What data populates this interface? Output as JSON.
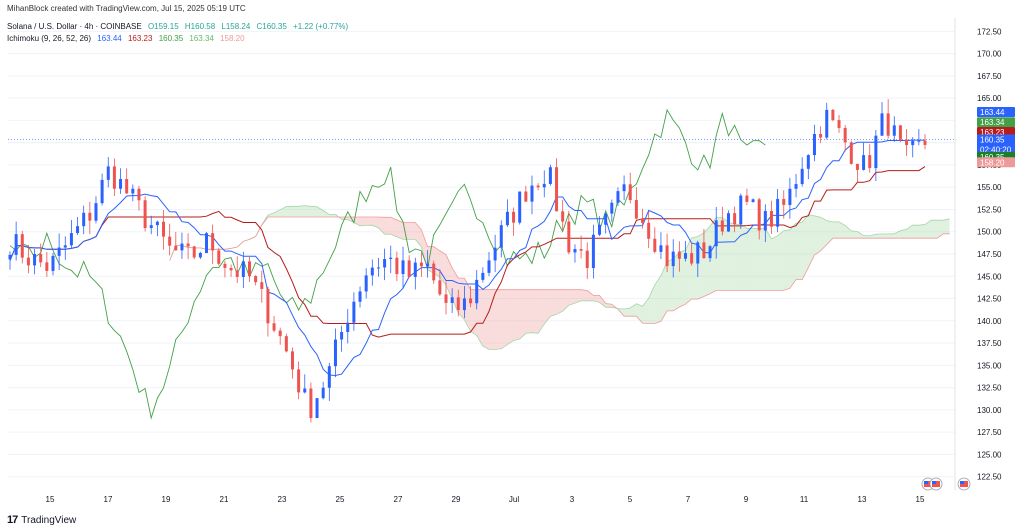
{
  "credit": "MihanBlock created with TradingView.com, Jul 15, 2025 05:19 UTC",
  "symbol": {
    "title": "Solana / U.S. Dollar · 4h · COINBASE",
    "o": "O159.15",
    "h": "H160.58",
    "l": "L158.24",
    "c": "C160.35",
    "change": "+1.22 (+0.77%)"
  },
  "ichimoku": {
    "label": "Ichimoku (9, 26, 52, 26)",
    "v1": "163.44",
    "v2": "163.23",
    "v3": "160.35",
    "v4": "163.34",
    "v5": "158.20"
  },
  "footer": {
    "brand": "TradingView"
  },
  "colors": {
    "up": "#26a69a",
    "down": "#ef5350",
    "conversion": "#2962ff",
    "base": "#b71c1c",
    "lagging": "#43a047",
    "span_a": "#a5d6a7",
    "span_b": "#ef9a9a"
  },
  "chart_data": {
    "type": "candlestick",
    "ylim": [
      121,
      174
    ],
    "y_ticks": [
      "122.50",
      "125.00",
      "127.50",
      "130.00",
      "132.50",
      "135.00",
      "137.50",
      "140.00",
      "142.50",
      "145.00",
      "147.50",
      "150.00",
      "152.50",
      "155.00",
      "157.50",
      "160.00",
      "162.50",
      "165.00",
      "167.50",
      "170.00",
      "172.50"
    ],
    "x_ticks": [
      "15",
      "17",
      "19",
      "21",
      "23",
      "25",
      "27",
      "29",
      "Jul",
      "3",
      "5",
      "7",
      "9",
      "11",
      "13",
      "15"
    ],
    "price_badges": [
      {
        "label": "163.44",
        "value": 163.44,
        "color": "#2962ff"
      },
      {
        "label": "163.34",
        "value": 162.3,
        "color": "#43a047"
      },
      {
        "label": "163.23",
        "value": 161.2,
        "color": "#b71c1c"
      },
      {
        "label": "160.35",
        "sub": "02:40:20",
        "value": 160.35,
        "color": "#2962ff"
      },
      {
        "label": "160.35",
        "value": 158.4,
        "color": "#1b7f2a"
      },
      {
        "label": "158.20",
        "value": 157.8,
        "color": "#ef9a9a"
      }
    ],
    "close_anchors": [
      [
        0,
        149
      ],
      [
        1,
        147
      ],
      [
        2,
        146
      ],
      [
        3,
        149
      ],
      [
        4,
        152
      ],
      [
        5,
        157
      ],
      [
        6,
        154
      ],
      [
        7,
        151
      ],
      [
        8,
        148
      ],
      [
        9,
        147
      ],
      [
        10,
        149
      ],
      [
        11,
        146
      ],
      [
        12,
        145
      ],
      [
        13,
        141
      ],
      [
        14,
        136
      ],
      [
        15,
        130
      ],
      [
        16,
        134
      ],
      [
        17,
        141
      ],
      [
        18,
        146
      ],
      [
        19,
        147
      ],
      [
        20,
        145
      ],
      [
        21,
        146
      ],
      [
        22,
        141
      ],
      [
        23,
        142
      ],
      [
        24,
        147
      ],
      [
        25,
        151
      ],
      [
        26,
        155
      ],
      [
        27,
        157
      ],
      [
        28,
        149
      ],
      [
        29,
        147
      ],
      [
        30,
        151
      ],
      [
        31,
        155
      ],
      [
        32,
        151
      ],
      [
        33,
        147
      ],
      [
        34,
        147
      ],
      [
        35,
        148
      ],
      [
        36,
        152
      ],
      [
        37,
        153
      ],
      [
        38,
        151
      ],
      [
        39,
        153
      ],
      [
        40,
        159
      ],
      [
        41,
        163
      ],
      [
        42,
        160
      ],
      [
        43,
        157
      ],
      [
        44,
        163
      ],
      [
        45,
        158
      ],
      [
        46,
        160
      ]
    ]
  }
}
